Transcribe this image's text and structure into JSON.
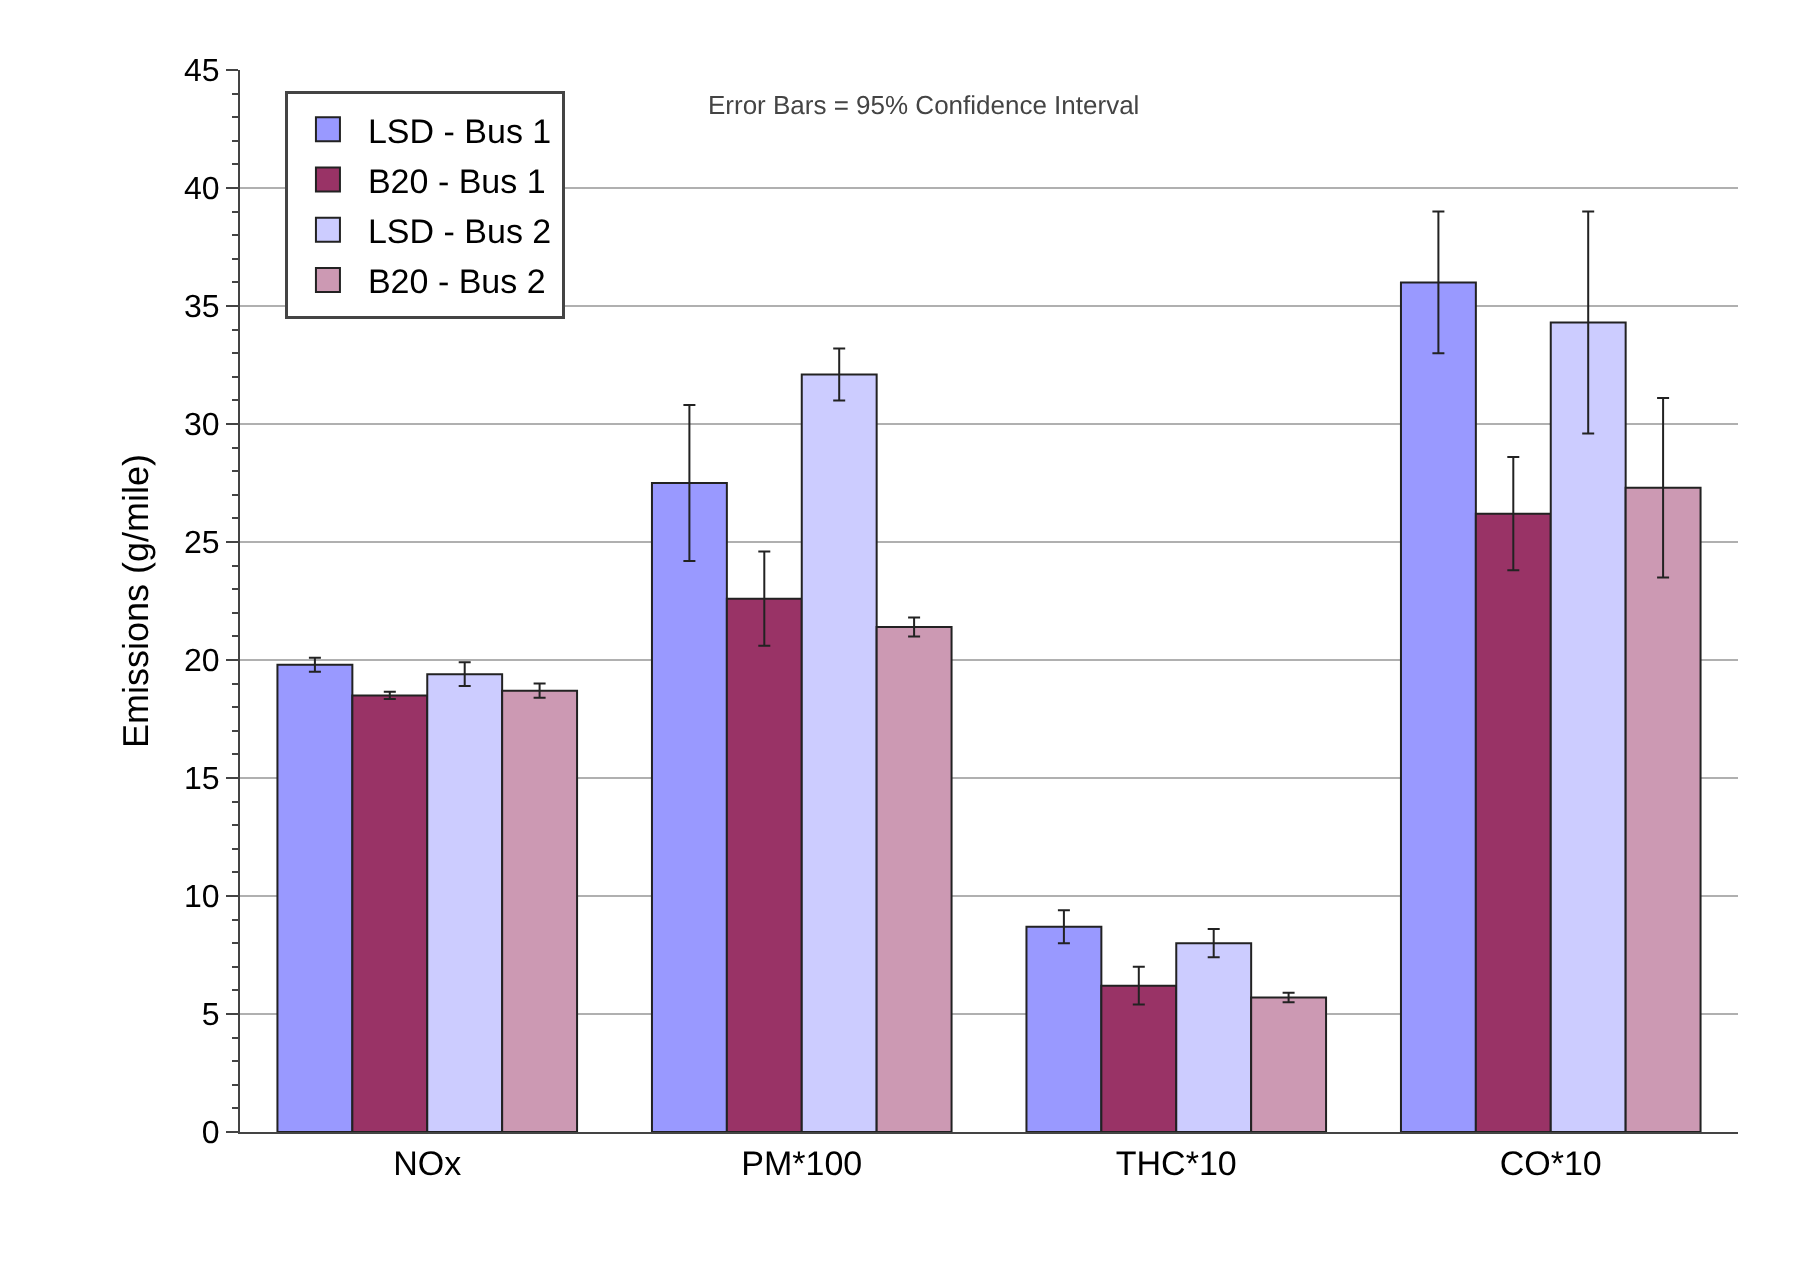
{
  "chart_data": {
    "type": "bar",
    "ylabel": "Emissions (g/mile)",
    "categories": [
      "NOx",
      "PM*100",
      "THC*10",
      "CO*10"
    ],
    "series": [
      {
        "name": "LSD - Bus 1",
        "color": "#9999ff",
        "values": [
          19.8,
          27.5,
          8.7,
          36.0
        ],
        "errors": [
          0.3,
          3.3,
          0.7,
          3.0
        ]
      },
      {
        "name": "B20 - Bus 1",
        "color": "#993366",
        "values": [
          18.5,
          22.6,
          6.2,
          26.2
        ],
        "errors": [
          0.15,
          2.0,
          0.8,
          2.4
        ]
      },
      {
        "name": "LSD - Bus 2",
        "color": "#ccccff",
        "values": [
          19.4,
          32.1,
          8.0,
          34.3
        ],
        "errors": [
          0.5,
          1.1,
          0.6,
          4.7
        ]
      },
      {
        "name": "B20 - Bus 2",
        "color": "#cc99b3",
        "values": [
          18.7,
          21.4,
          5.7,
          27.3
        ],
        "errors": [
          0.3,
          0.4,
          0.2,
          3.8
        ]
      }
    ],
    "annotations": [
      "Error Bars = 95% Confidence Interval"
    ],
    "ylim": [
      0,
      45
    ],
    "yticks": [
      0,
      5,
      10,
      15,
      20,
      25,
      30,
      35,
      40,
      45
    ],
    "grid": "y",
    "legend": "top left"
  }
}
